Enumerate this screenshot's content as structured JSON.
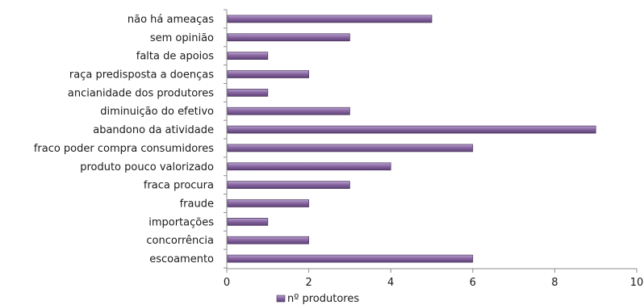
{
  "chart_data": {
    "type": "bar",
    "orientation": "horizontal",
    "categories": [
      "não há ameaças",
      "sem opinião",
      "falta de apoios",
      "raça predisposta a doenças",
      "ancianidade dos produtores",
      "diminuição do efetivo",
      "abandono da atividade",
      "fraco poder compra consumidores",
      "produto pouco valorizado",
      "fraca procura",
      "fraude",
      "importações",
      "concorrência",
      "escoamento"
    ],
    "series": [
      {
        "name": "nº produtores",
        "values": [
          5,
          3,
          1,
          2,
          1,
          3,
          9,
          6,
          4,
          3,
          2,
          1,
          2,
          6
        ],
        "color": "#7b5a93"
      }
    ],
    "xlim": [
      0,
      10
    ],
    "xticks": [
      "0",
      "2",
      "4",
      "6",
      "8",
      "10"
    ],
    "legend": "bottom",
    "grid": false
  }
}
